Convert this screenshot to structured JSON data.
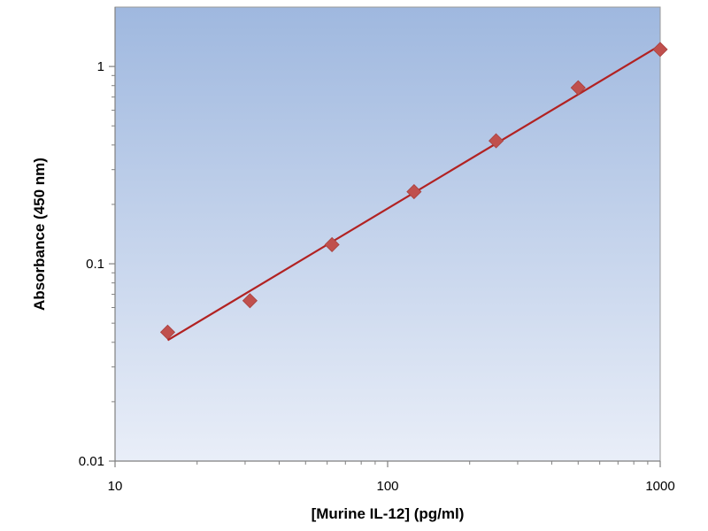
{
  "chart_data": {
    "type": "scatter",
    "title": "",
    "xlabel": "[Murine IL-12] (pg/ml)",
    "ylabel": "Absorbance (450 nm)",
    "x_scale": "log",
    "y_scale": "log",
    "xlim": [
      10,
      1000
    ],
    "ylim": [
      0.01,
      2
    ],
    "x_ticks": [
      {
        "value": 10,
        "label": "10"
      },
      {
        "value": 100,
        "label": "100"
      },
      {
        "value": 1000,
        "label": "1000"
      }
    ],
    "y_ticks": [
      {
        "value": 0.01,
        "label": "0.01"
      },
      {
        "value": 0.1,
        "label": "0.1"
      },
      {
        "value": 1,
        "label": "1"
      }
    ],
    "grid": false,
    "legend": "none",
    "series": [
      {
        "type": "scatter",
        "marker": "diamond",
        "color": "#c0504d",
        "x": [
          15.6,
          31.25,
          62.5,
          125,
          250,
          500,
          1000
        ],
        "y": [
          0.045,
          0.065,
          0.125,
          0.232,
          0.42,
          0.78,
          1.22
        ]
      },
      {
        "type": "line",
        "color": "#b22222",
        "x": [
          15.6,
          1000
        ],
        "y": [
          0.041,
          1.28
        ]
      }
    ],
    "colors": {
      "plot_bg_top": "#9fb8df",
      "plot_bg_bottom": "#e9eef8"
    }
  }
}
